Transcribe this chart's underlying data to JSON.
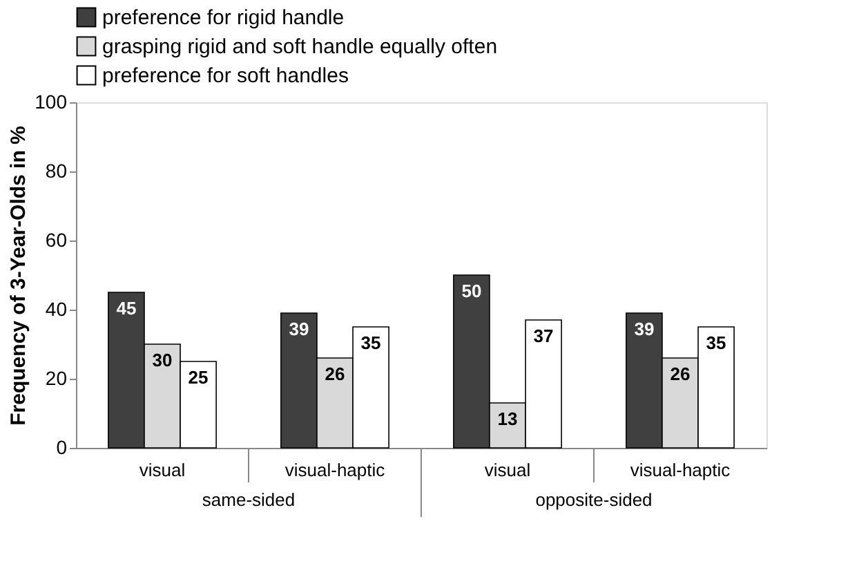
{
  "chart_data": {
    "type": "bar",
    "ylabel": "Frequency of 3-Year-Olds in %",
    "categories": [
      "visual",
      "visual-haptic",
      "visual",
      "visual-haptic"
    ],
    "series": [
      {
        "name": "preference for rigid handle",
        "color": "#404040",
        "values": [
          45,
          39,
          50,
          39
        ]
      },
      {
        "name": "grasping rigid and soft handle equally often",
        "color": "#d9d9d9",
        "values": [
          30,
          26,
          13,
          26
        ]
      },
      {
        "name": "preference for soft handles",
        "color": "#ffffff",
        "values": [
          25,
          35,
          37,
          35
        ]
      }
    ],
    "ylim": [
      0,
      100
    ],
    "yticks": [
      0,
      20,
      40,
      60,
      80,
      100
    ],
    "grid": false,
    "legend": "top",
    "data_labels": true,
    "annotations": [
      "same-sided",
      "opposite-sided"
    ]
  }
}
